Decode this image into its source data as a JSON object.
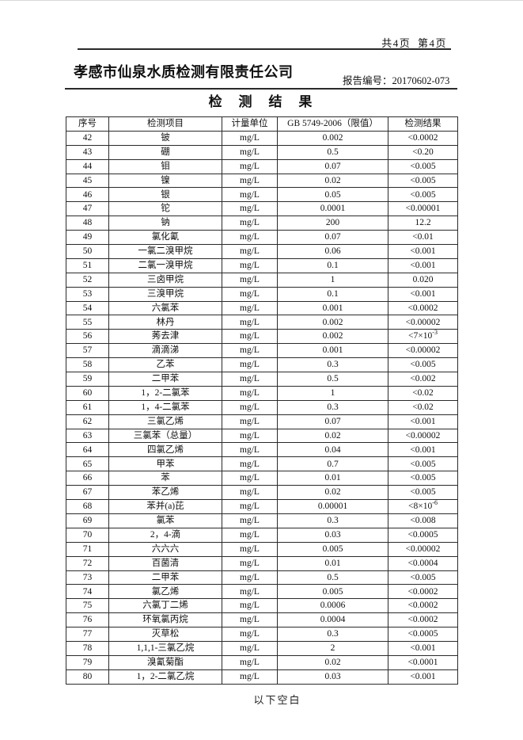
{
  "header": {
    "page_indicator": "共4页 第4页",
    "company_name": "孝感市仙泉水质检测有限责任公司",
    "report_no_label": "报告编号：",
    "report_no_value": "20170602-073",
    "title": "检 测 结 果"
  },
  "table": {
    "headers": [
      "序号",
      "检测项目",
      "计量单位",
      "GB 5749-2006（限值）",
      "检测结果"
    ],
    "unit_common": "mg/L",
    "rows": [
      [
        "42",
        "铍",
        "mg/L",
        "0.002",
        "<0.0002"
      ],
      [
        "43",
        "硼",
        "mg/L",
        "0.5",
        "<0.20"
      ],
      [
        "44",
        "钼",
        "mg/L",
        "0.07",
        "<0.005"
      ],
      [
        "45",
        "镍",
        "mg/L",
        "0.02",
        "<0.005"
      ],
      [
        "46",
        "银",
        "mg/L",
        "0.05",
        "<0.005"
      ],
      [
        "47",
        "铊",
        "mg/L",
        "0.0001",
        "<0.00001"
      ],
      [
        "48",
        "钠",
        "mg/L",
        "200",
        "12.2"
      ],
      [
        "49",
        "氯化氰",
        "mg/L",
        "0.07",
        "<0.01"
      ],
      [
        "50",
        "一氯二溴甲烷",
        "mg/L",
        "0.06",
        "<0.001"
      ],
      [
        "51",
        "二氯一溴甲烷",
        "mg/L",
        "0.1",
        "<0.001"
      ],
      [
        "52",
        "三卤甲烷",
        "mg/L",
        "1",
        "0.020"
      ],
      [
        "53",
        "三溴甲烷",
        "mg/L",
        "0.1",
        "<0.001"
      ],
      [
        "54",
        "六氯苯",
        "mg/L",
        "0.001",
        "<0.0002"
      ],
      [
        "55",
        "林丹",
        "mg/L",
        "0.002",
        "<0.00002"
      ],
      [
        "56",
        "莠去津",
        "mg/L",
        "0.002",
        "<7×10^-3"
      ],
      [
        "57",
        "滴滴涕",
        "mg/L",
        "0.001",
        "<0.00002"
      ],
      [
        "58",
        "乙苯",
        "mg/L",
        "0.3",
        "<0.005"
      ],
      [
        "59",
        "二甲苯",
        "mg/L",
        "0.5",
        "<0.002"
      ],
      [
        "60",
        "1，2-二氯苯",
        "mg/L",
        "1",
        "<0.02"
      ],
      [
        "61",
        "1，4-二氯苯",
        "mg/L",
        "0.3",
        "<0.02"
      ],
      [
        "62",
        "三氯乙烯",
        "mg/L",
        "0.07",
        "<0.001"
      ],
      [
        "63",
        "三氯苯（总量）",
        "mg/L",
        "0.02",
        "<0.00002"
      ],
      [
        "64",
        "四氯乙烯",
        "mg/L",
        "0.04",
        "<0.001"
      ],
      [
        "65",
        "甲苯",
        "mg/L",
        "0.7",
        "<0.005"
      ],
      [
        "66",
        "苯",
        "mg/L",
        "0.01",
        "<0.005"
      ],
      [
        "67",
        "苯乙烯",
        "mg/L",
        "0.02",
        "<0.005"
      ],
      [
        "68",
        "苯并(a)芘",
        "mg/L",
        "0.00001",
        "<8×10^-6"
      ],
      [
        "69",
        "氯苯",
        "mg/L",
        "0.3",
        "<0.008"
      ],
      [
        "70",
        "2，4-滴",
        "mg/L",
        "0.03",
        "<0.0005"
      ],
      [
        "71",
        "六六六",
        "mg/L",
        "0.005",
        "<0.00002"
      ],
      [
        "72",
        "百菌清",
        "mg/L",
        "0.01",
        "<0.0004"
      ],
      [
        "73",
        "二甲苯",
        "mg/L",
        "0.5",
        "<0.005"
      ],
      [
        "74",
        "氯乙烯",
        "mg/L",
        "0.005",
        "<0.0002"
      ],
      [
        "75",
        "六氯丁二烯",
        "mg/L",
        "0.0006",
        "<0.0002"
      ],
      [
        "76",
        "环氧氯丙烷",
        "mg/L",
        "0.0004",
        "<0.0002"
      ],
      [
        "77",
        "灭草松",
        "mg/L",
        "0.3",
        "<0.0005"
      ],
      [
        "78",
        "1,1,1-三氯乙烷",
        "mg/L",
        "2",
        "<0.001"
      ],
      [
        "79",
        "溴氰菊酯",
        "mg/L",
        "0.02",
        "<0.0001"
      ],
      [
        "80",
        "1，2-二氯乙烷",
        "mg/L",
        "0.03",
        "<0.001"
      ]
    ]
  },
  "footer": {
    "note": "以下空白"
  }
}
